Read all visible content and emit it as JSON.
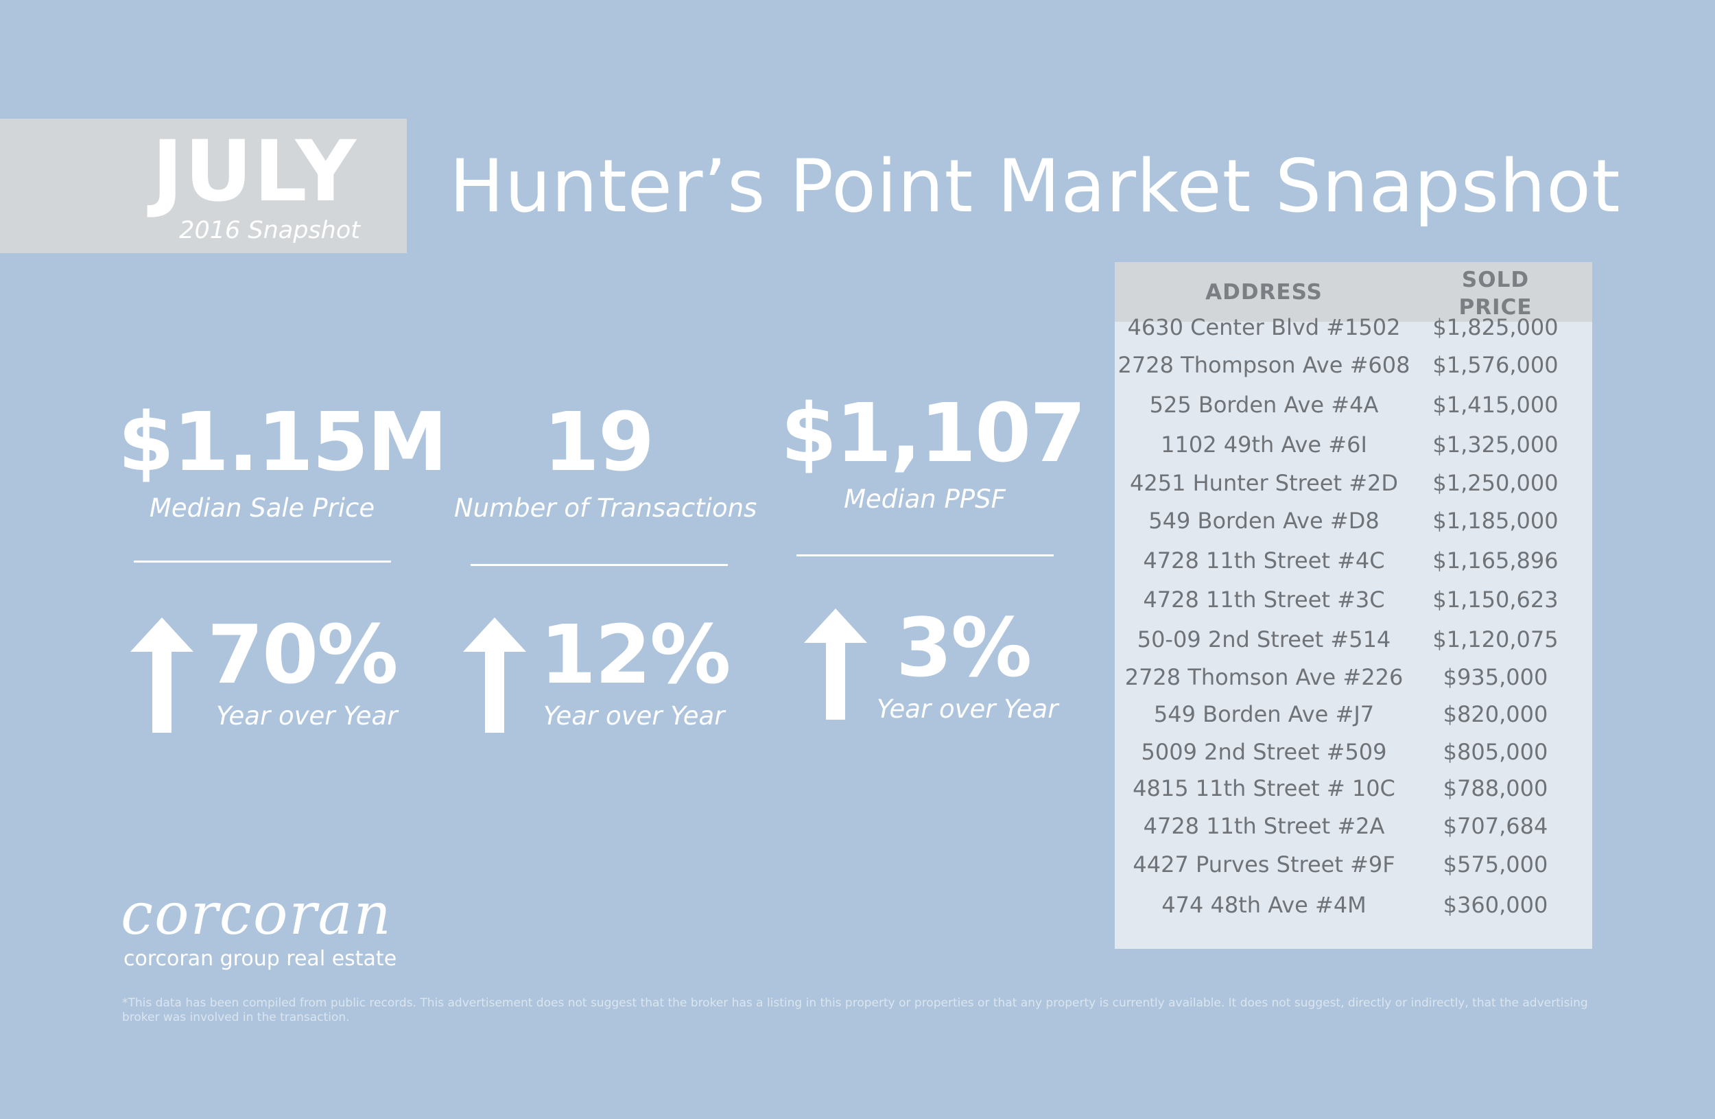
{
  "header": {
    "month": "JULY",
    "month_sub": "2016 Snapshot",
    "title": "Hunter’s Point Market Snapshot"
  },
  "stats": [
    {
      "value": "$1.15M",
      "label": "Median Sale Price"
    },
    {
      "value": "19",
      "label": "Number of Transactions"
    },
    {
      "value": "$1,107",
      "label": "Median PPSF"
    }
  ],
  "yoy": [
    {
      "value": "70%",
      "label": "Year over Year",
      "direction": "up"
    },
    {
      "value": "12%",
      "label": "Year over Year",
      "direction": "up"
    },
    {
      "value": "3%",
      "label": "Year over Year",
      "direction": "up"
    }
  ],
  "table": {
    "header_address": "ADDRESS",
    "header_price_line1": "SOLD",
    "header_price_line2": "PRICE",
    "rows": [
      {
        "address": "4630 Center Blvd #1502",
        "price": "$1,825,000"
      },
      {
        "address": "2728 Thompson Ave #608",
        "price": "$1,576,000"
      },
      {
        "address": "525 Borden Ave #4A",
        "price": "$1,415,000"
      },
      {
        "address": "1102 49th Ave #6I",
        "price": "$1,325,000"
      },
      {
        "address": "4251 Hunter Street #2D",
        "price": "$1,250,000"
      },
      {
        "address": "549 Borden Ave #D8",
        "price": "$1,185,000"
      },
      {
        "address": "4728 11th Street #4C",
        "price": "$1,165,896"
      },
      {
        "address": "4728 11th Street #3C",
        "price": "$1,150,623"
      },
      {
        "address": "50-09 2nd Street #514",
        "price": "$1,120,075"
      },
      {
        "address": "2728 Thomson Ave #226",
        "price": "$935,000"
      },
      {
        "address": "549 Borden Ave #J7",
        "price": "$820,000"
      },
      {
        "address": "5009 2nd Street #509",
        "price": "$805,000"
      },
      {
        "address": "4815 11th Street # 10C",
        "price": "$788,000"
      },
      {
        "address": "4728 11th Street #2A",
        "price": "$707,684"
      },
      {
        "address": "4427 Purves Street #9F",
        "price": "$575,000"
      },
      {
        "address": "474 48th Ave #4M",
        "price": "$360,000"
      }
    ]
  },
  "logo": {
    "wordmark": "corcoran",
    "tagline": "corcoran group real estate"
  },
  "disclaimer": "*This data has been compiled from public records. This advertisement does not suggest that the broker has a listing in this property or properties or that any property is currently available. It does not suggest, directly or indirectly, that the advertising broker was involved in the transaction.",
  "colors": {
    "background": "#adc4dc",
    "panel_gray": "#d3d6d8",
    "table_body": "#e1e8f0",
    "table_text": "#6f7378"
  }
}
